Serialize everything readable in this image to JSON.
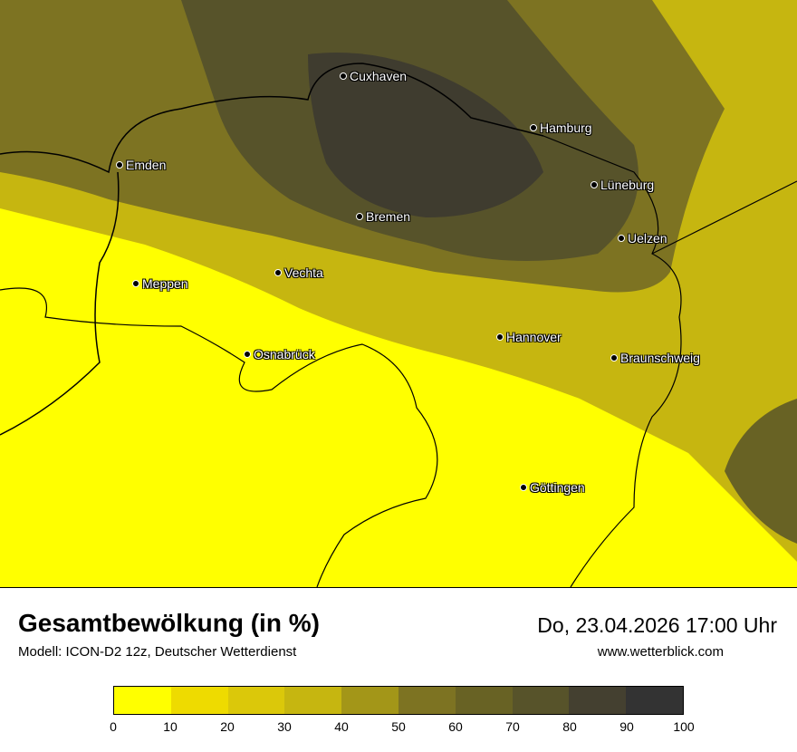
{
  "title": "Gesamtbewölkung (in %)",
  "subtitle": "Modell: ICON-D2 12z, Deutscher Wetterdienst",
  "datetime": "Do, 23.04.2026 17:00 Uhr",
  "website": "www.wetterblick.com",
  "cities": [
    "Cuxhaven",
    "Hamburg",
    "Emden",
    "Lüneburg",
    "Bremen",
    "Uelzen",
    "Vechta",
    "Meppen",
    "Hannover",
    "Osnabrück",
    "Braunschweig",
    "Göttingen"
  ],
  "legend": {
    "ticks": [
      "0",
      "10",
      "20",
      "30",
      "40",
      "50",
      "60",
      "70",
      "80",
      "90",
      "100"
    ],
    "colors": [
      "#ffff00",
      "#eedb00",
      "#dbc80a",
      "#c6b610",
      "#a39618",
      "#7d7322",
      "#686224",
      "#57532a",
      "#444030",
      "#333333"
    ]
  }
}
